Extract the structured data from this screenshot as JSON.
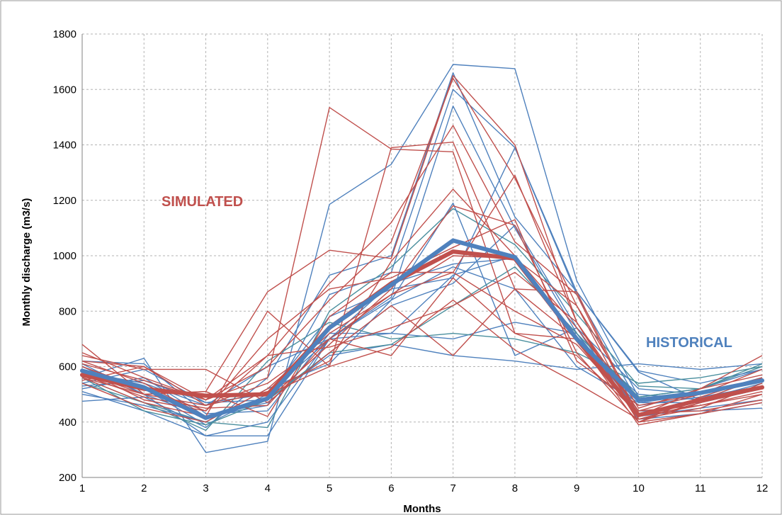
{
  "chart_data": {
    "type": "line",
    "xlabel": "Months",
    "ylabel": "Monthly discharge (m3/s)",
    "categories": [
      "1",
      "2",
      "3",
      "4",
      "5",
      "6",
      "7",
      "8",
      "9",
      "10",
      "11",
      "12"
    ],
    "y_ticks": [
      "200",
      "400",
      "600",
      "800",
      "1000",
      "1200",
      "1400",
      "1600",
      "1800"
    ],
    "ylim": [
      200,
      1800
    ],
    "grid": true,
    "annotations": [
      {
        "text": "SIMULATED",
        "color": "#c0504d"
      },
      {
        "text": "HISTORICAL",
        "color": "#4f81bd"
      }
    ],
    "colors": {
      "simulated": "#c0504d",
      "historical": "#4f81bd",
      "historical_alt": "#4a8f9e"
    },
    "historical_mean": [
      585,
      525,
      415,
      485,
      740,
      895,
      1055,
      995,
      700,
      480,
      505,
      550
    ],
    "simulated_mean": [
      570,
      520,
      495,
      500,
      740,
      900,
      1015,
      990,
      700,
      425,
      480,
      525
    ],
    "historical_members": [
      [
        560,
        630,
        290,
        330,
        1185,
        1330,
        1690,
        1675,
        910,
        490,
        520,
        590
      ],
      [
        520,
        560,
        420,
        460,
        860,
        940,
        1600,
        1390,
        860,
        470,
        500,
        560
      ],
      [
        600,
        500,
        350,
        350,
        700,
        850,
        1540,
        1100,
        720,
        420,
        450,
        480
      ],
      [
        540,
        470,
        400,
        380,
        800,
        960,
        1170,
        1040,
        790,
        530,
        520,
        600
      ],
      [
        475,
        490,
        380,
        560,
        930,
        1000,
        1660,
        1140,
        870,
        585,
        540,
        590
      ],
      [
        580,
        540,
        460,
        600,
        700,
        720,
        930,
        1000,
        700,
        500,
        480,
        540
      ],
      [
        500,
        460,
        400,
        520,
        610,
        840,
        960,
        880,
        600,
        470,
        470,
        520
      ],
      [
        620,
        610,
        430,
        440,
        720,
        720,
        700,
        760,
        720,
        440,
        440,
        450
      ],
      [
        560,
        470,
        370,
        620,
        760,
        700,
        720,
        700,
        650,
        540,
        560,
        600
      ],
      [
        530,
        550,
        470,
        480,
        640,
        680,
        640,
        620,
        590,
        610,
        590,
        610
      ],
      [
        610,
        500,
        420,
        470,
        650,
        820,
        900,
        1110,
        740,
        520,
        500,
        560
      ],
      [
        510,
        440,
        350,
        400,
        700,
        840,
        1190,
        640,
        740,
        410,
        430,
        470
      ],
      [
        590,
        520,
        390,
        500,
        780,
        880,
        920,
        1390,
        870,
        580,
        480,
        520
      ],
      [
        560,
        440,
        390,
        480,
        650,
        680,
        820,
        960,
        720,
        490,
        520,
        610
      ],
      [
        540,
        590,
        470,
        500,
        700,
        900,
        970,
        990,
        700,
        460,
        490,
        530
      ]
    ],
    "simulated_members": [
      [
        580,
        500,
        510,
        870,
        1020,
        990,
        1650,
        1400,
        760,
        420,
        460,
        510
      ],
      [
        650,
        560,
        480,
        560,
        1535,
        1385,
        1375,
        720,
        640,
        430,
        480,
        560
      ],
      [
        620,
        540,
        420,
        800,
        600,
        1390,
        1410,
        880,
        700,
        390,
        430,
        500
      ],
      [
        550,
        600,
        480,
        600,
        840,
        1050,
        1640,
        1280,
        820,
        400,
        470,
        530
      ],
      [
        600,
        520,
        440,
        640,
        900,
        1120,
        1470,
        1050,
        860,
        410,
        450,
        540
      ],
      [
        680,
        500,
        460,
        510,
        620,
        980,
        1240,
        1000,
        740,
        440,
        460,
        500
      ],
      [
        560,
        470,
        420,
        480,
        680,
        880,
        1180,
        1110,
        650,
        400,
        490,
        560
      ],
      [
        640,
        590,
        590,
        470,
        650,
        820,
        640,
        880,
        870,
        420,
        520,
        640
      ],
      [
        590,
        480,
        440,
        700,
        880,
        920,
        1030,
        1130,
        620,
        460,
        500,
        590
      ],
      [
        560,
        500,
        510,
        420,
        780,
        940,
        940,
        1290,
        760,
        400,
        430,
        470
      ],
      [
        620,
        600,
        460,
        540,
        700,
        860,
        1000,
        990,
        820,
        450,
        520,
        570
      ],
      [
        540,
        450,
        400,
        520,
        720,
        860,
        940,
        800,
        680,
        430,
        480,
        530
      ],
      [
        600,
        520,
        500,
        500,
        600,
        670,
        840,
        660,
        540,
        410,
        470,
        520
      ],
      [
        570,
        490,
        450,
        460,
        700,
        640,
        920,
        720,
        700,
        430,
        440,
        480
      ],
      [
        610,
        550,
        480,
        640,
        670,
        740,
        820,
        940,
        760,
        440,
        500,
        550
      ]
    ]
  }
}
